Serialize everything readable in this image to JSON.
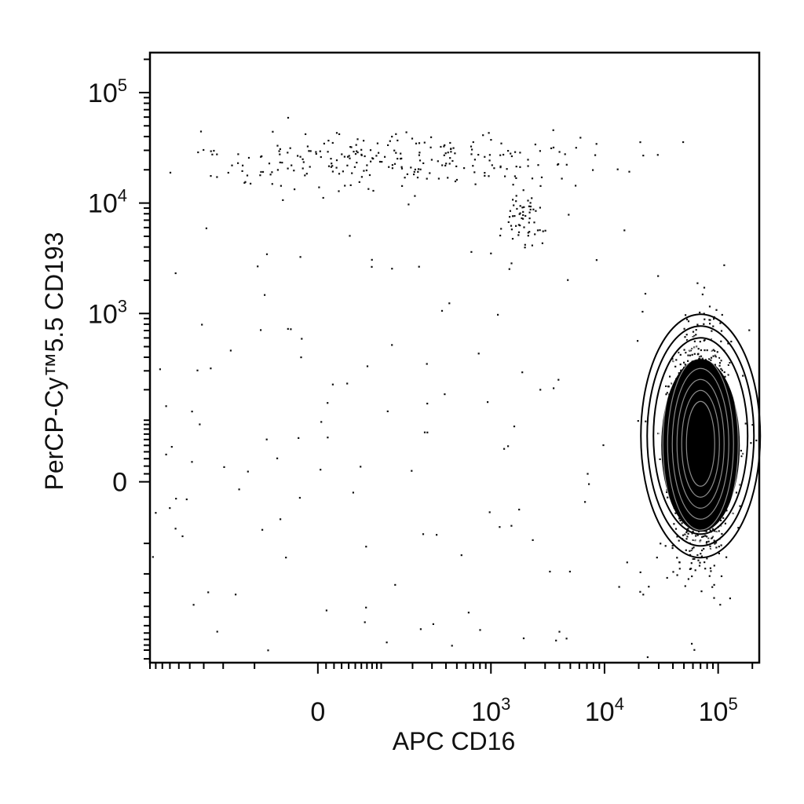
{
  "chart_data": {
    "type": "scatter",
    "subtype": "flow-cytometry-dot-plot-with-contours",
    "xlabel": "APC CD16",
    "ylabel": "PerCP-Cy™5.5 CD193",
    "x_scale": "biexponential",
    "y_scale": "biexponential",
    "xlim": [
      -900,
      230000
    ],
    "ylim": [
      -1300,
      230000
    ],
    "x_ticks": [
      {
        "value": 0,
        "base": "0",
        "exp": ""
      },
      {
        "value": 1000,
        "base": "10",
        "exp": "3"
      },
      {
        "value": 10000,
        "base": "10",
        "exp": "4"
      },
      {
        "value": 100000,
        "base": "10",
        "exp": "5"
      }
    ],
    "y_ticks": [
      {
        "value": 0,
        "base": "0",
        "exp": ""
      },
      {
        "value": 1000,
        "base": "10",
        "exp": "3"
      },
      {
        "value": 10000,
        "base": "10",
        "exp": "4"
      },
      {
        "value": 100000,
        "base": "10",
        "exp": "5"
      }
    ],
    "grid": false,
    "legend": "none",
    "populations": [
      {
        "label": "",
        "x_center": 70000,
        "y_center": 50,
        "count": 1800,
        "contours": true
      },
      {
        "label": "",
        "x_center": 150,
        "y_center": 25000,
        "count": 260,
        "contours": false
      },
      {
        "label": "",
        "x_center": 1800,
        "y_center": 6500,
        "count": 60,
        "contours": false
      }
    ],
    "point_color": "#111111"
  }
}
